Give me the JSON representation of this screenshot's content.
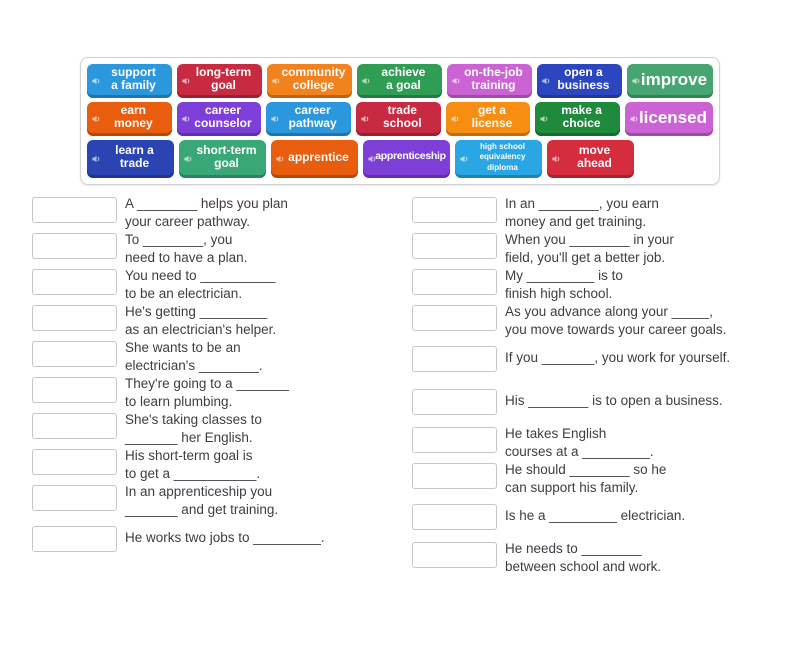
{
  "word_bank": {
    "rows": [
      [
        {
          "label": "support\na family",
          "color": "#2b97dd"
        },
        {
          "label": "long-term\ngoal",
          "color": "#c82a42"
        },
        {
          "label": "community\ncollege",
          "color": "#f2821d"
        },
        {
          "label": "achieve\na goal",
          "color": "#2f9e54"
        },
        {
          "label": "on-the-job\ntraining",
          "color": "#cb63d4"
        },
        {
          "label": "open a\nbusiness",
          "color": "#2c46c0"
        },
        {
          "label": "improve",
          "color": "#47a571",
          "text_size": "large"
        }
      ],
      [
        {
          "label": "earn\nmoney",
          "color": "#e95d0e"
        },
        {
          "label": "career\ncounselor",
          "color": "#7e3ed8"
        },
        {
          "label": "career\npathway",
          "color": "#2b97dd"
        },
        {
          "label": "trade\nschool",
          "color": "#c82a42"
        },
        {
          "label": "get a\nlicense",
          "color": "#f78e11"
        },
        {
          "label": "make a\nchoice",
          "color": "#1f8a3b"
        },
        {
          "label": "licensed",
          "color": "#cb63d4",
          "text_size": "large"
        }
      ],
      [
        {
          "label": "learn a\ntrade",
          "color": "#2b44b4"
        },
        {
          "label": "short-term\ngoal",
          "color": "#39a876"
        },
        {
          "label": "apprentice",
          "color": "#e95d0e"
        },
        {
          "label": "apprenticeship",
          "color": "#7e3ed8",
          "text_size": "small"
        },
        {
          "label": "high school\nequivalency\ndiploma",
          "color": "#2ba6e4",
          "text_size": "xsmall"
        },
        {
          "label": "move\nahead",
          "color": "#d52c3e"
        }
      ]
    ],
    "icon": "speaker-icon"
  },
  "sentences": {
    "left": [
      {
        "lines": [
          "A ________ helps you plan",
          "your career pathway."
        ]
      },
      {
        "lines": [
          "To ________, you",
          "need to have a plan."
        ]
      },
      {
        "lines": [
          "You need to __________",
          "to be an electrician."
        ]
      },
      {
        "lines": [
          "He's getting _________",
          "as an electrician's helper."
        ]
      },
      {
        "lines": [
          "She wants to be an",
          "electrician's ________."
        ]
      },
      {
        "lines": [
          "They're going to a _______",
          "to learn plumbing."
        ]
      },
      {
        "lines": [
          "She's taking classes to",
          "_______ her English."
        ]
      },
      {
        "lines": [
          "His short-term goal is",
          "to get a ___________."
        ]
      },
      {
        "lines": [
          "In an apprenticeship you",
          "_______ and get training."
        ]
      },
      {
        "lines": [
          "He works two jobs to _________."
        ]
      }
    ],
    "right": [
      {
        "lines": [
          "In an ________, you earn",
          "money and get training."
        ]
      },
      {
        "lines": [
          "When you ________ in your",
          "field, you'll get a better job."
        ]
      },
      {
        "lines": [
          "My _________ is to",
          "finish high school."
        ]
      },
      {
        "lines": [
          "As you advance along your _____,",
          "you move towards your career goals."
        ]
      },
      {
        "lines": [
          "If you _______, you work for yourself."
        ]
      },
      {
        "lines": [
          "His ________ is to open a business."
        ]
      },
      {
        "lines": [
          "He takes English",
          "courses at a _________."
        ]
      },
      {
        "lines": [
          "He should ________ so he",
          "can support his family."
        ]
      },
      {
        "lines": [
          "Is he a _________ electrician."
        ]
      },
      {
        "lines": [
          "He needs to ________",
          "between school and work."
        ]
      }
    ]
  }
}
